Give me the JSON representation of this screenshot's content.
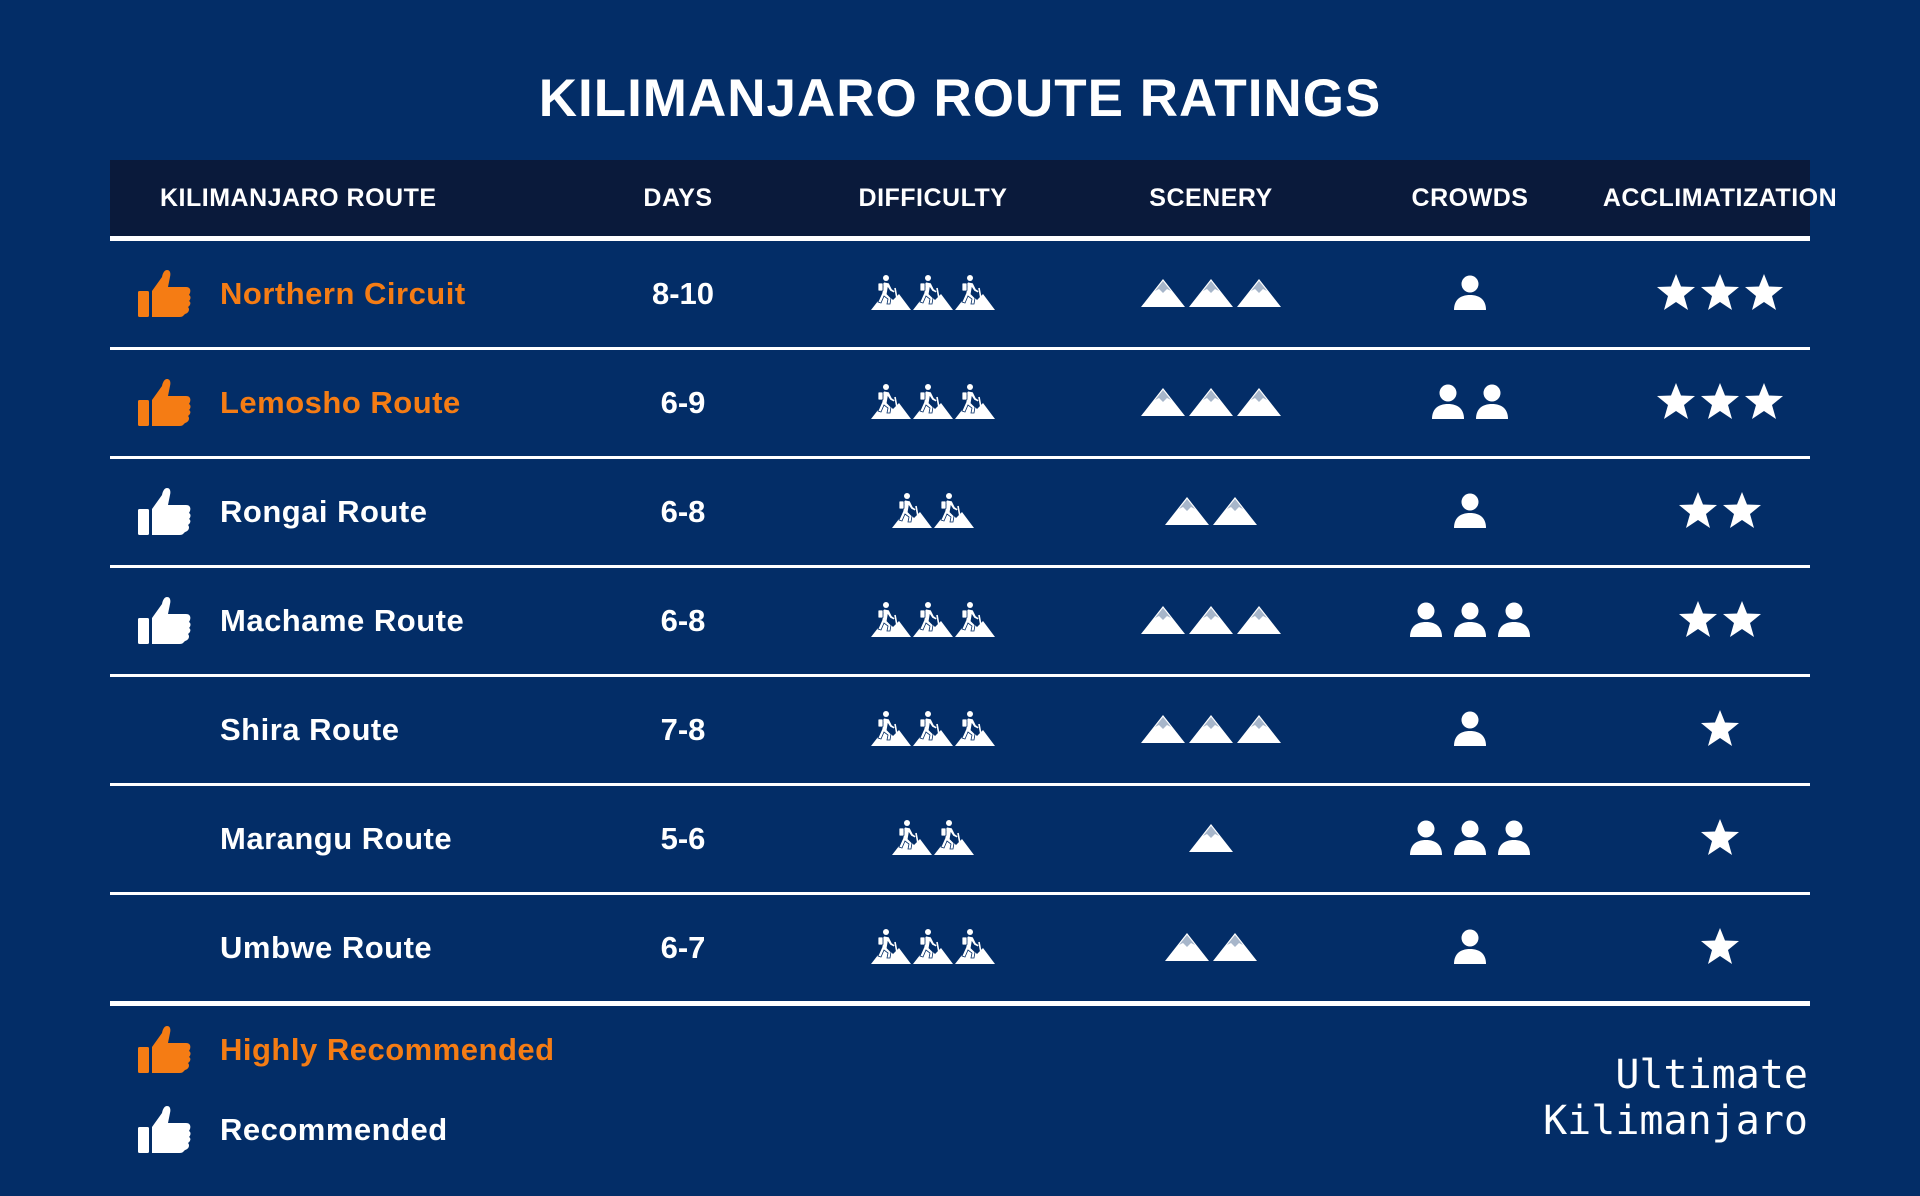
{
  "title": "KILIMANJARO ROUTE RATINGS",
  "columns": {
    "route": "KILIMANJARO ROUTE",
    "days": "DAYS",
    "difficulty": "DIFFICULTY",
    "scenery": "SCENERY",
    "crowds": "CROWDS",
    "acclimatization": "ACCLIMATIZATION"
  },
  "icons": {
    "difficulty": "hiker-icon",
    "scenery": "mountain-icon",
    "crowds": "person-icon",
    "acclimatization": "star-icon",
    "recommendation": "thumbs-up-icon"
  },
  "colors": {
    "background": "#032d67",
    "header_background": "#0a1a3b",
    "highly_recommended": "#f57c14",
    "recommended": "#ffffff"
  },
  "routes": [
    {
      "name": "Northern Circuit",
      "days": "8-10",
      "recommendation": "highly",
      "difficulty": 3,
      "scenery": 3,
      "crowds": 1,
      "acclimatization": 3
    },
    {
      "name": "Lemosho Route",
      "days": "6-9",
      "recommendation": "highly",
      "difficulty": 3,
      "scenery": 3,
      "crowds": 2,
      "acclimatization": 3
    },
    {
      "name": "Rongai Route",
      "days": "6-8",
      "recommendation": "recommended",
      "difficulty": 2,
      "scenery": 2,
      "crowds": 1,
      "acclimatization": 2
    },
    {
      "name": "Machame Route",
      "days": "6-8",
      "recommendation": "recommended",
      "difficulty": 3,
      "scenery": 3,
      "crowds": 3,
      "acclimatization": 2
    },
    {
      "name": "Shira Route",
      "days": "7-8",
      "recommendation": "none",
      "difficulty": 3,
      "scenery": 3,
      "crowds": 1,
      "acclimatization": 1
    },
    {
      "name": "Marangu Route",
      "days": "5-6",
      "recommendation": "none",
      "difficulty": 2,
      "scenery": 1,
      "crowds": 3,
      "acclimatization": 1
    },
    {
      "name": "Umbwe Route",
      "days": "6-7",
      "recommendation": "none",
      "difficulty": 3,
      "scenery": 2,
      "crowds": 1,
      "acclimatization": 1
    }
  ],
  "legend": {
    "highly": "Highly Recommended",
    "recommended": "Recommended"
  },
  "brand": {
    "line1": "Ultimate",
    "line2": "Kilimanjaro"
  }
}
